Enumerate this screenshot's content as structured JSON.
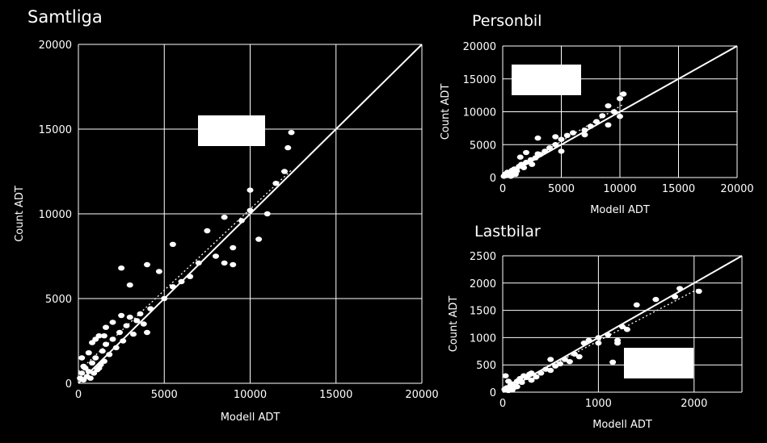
{
  "chart_data": [
    {
      "type": "scatter",
      "title": "Samtliga",
      "xlabel": "Modell ADT",
      "ylabel": "Count ADT",
      "xlim": [
        0,
        20000
      ],
      "ylim": [
        0,
        20000
      ],
      "xticks": [
        "0",
        "5000",
        "10000",
        "15000",
        "20000"
      ],
      "yticks": [
        "0",
        "5000",
        "10000",
        "15000",
        "20000"
      ],
      "grid": true,
      "reference_line": "y = x",
      "trendline": "dotted",
      "colors": {
        "background": "#000000",
        "marks": "#ffffff"
      },
      "points": [
        [
          200,
          600
        ],
        [
          400,
          900
        ],
        [
          600,
          700
        ],
        [
          800,
          1200
        ],
        [
          1000,
          1500
        ],
        [
          1200,
          900
        ],
        [
          1400,
          1900
        ],
        [
          1600,
          2300
        ],
        [
          1800,
          1700
        ],
        [
          2000,
          2600
        ],
        [
          2200,
          2100
        ],
        [
          2400,
          3000
        ],
        [
          2600,
          2500
        ],
        [
          2800,
          3400
        ],
        [
          3000,
          3900
        ],
        [
          3200,
          2900
        ],
        [
          3400,
          3700
        ],
        [
          3600,
          4100
        ],
        [
          3800,
          3500
        ],
        [
          4000,
          3000
        ],
        [
          1000,
          2600
        ],
        [
          1500,
          2800
        ],
        [
          2500,
          4000
        ],
        [
          3000,
          5800
        ],
        [
          2500,
          6800
        ],
        [
          4000,
          7000
        ],
        [
          4700,
          6600
        ],
        [
          5000,
          5000
        ],
        [
          5500,
          5700
        ],
        [
          6000,
          6000
        ],
        [
          5500,
          8200
        ],
        [
          7000,
          7100
        ],
        [
          8000,
          7500
        ],
        [
          8500,
          7100
        ],
        [
          9000,
          7000
        ],
        [
          8500,
          9800
        ],
        [
          9500,
          9600
        ],
        [
          10000,
          10200
        ],
        [
          10000,
          11400
        ],
        [
          10500,
          8500
        ],
        [
          11000,
          10000
        ],
        [
          11500,
          11800
        ],
        [
          12000,
          12500
        ],
        [
          12200,
          13900
        ],
        [
          12400,
          14800
        ],
        [
          9000,
          8000
        ],
        [
          7500,
          9000
        ],
        [
          100,
          300
        ],
        [
          300,
          200
        ],
        [
          500,
          400
        ],
        [
          700,
          300
        ],
        [
          900,
          600
        ],
        [
          1100,
          800
        ],
        [
          1300,
          1100
        ],
        [
          1500,
          1300
        ],
        [
          300,
          1000
        ],
        [
          200,
          1500
        ],
        [
          600,
          1800
        ],
        [
          800,
          2400
        ],
        [
          1200,
          2800
        ],
        [
          1600,
          3300
        ],
        [
          2000,
          3600
        ],
        [
          4200,
          4400
        ],
        [
          6500,
          6300
        ]
      ],
      "annotation_box": true
    },
    {
      "type": "scatter",
      "title": "Personbil",
      "xlabel": "Modell ADT",
      "ylabel": "Count ADT",
      "xlim": [
        0,
        20000
      ],
      "ylim": [
        0,
        20000
      ],
      "xticks": [
        "0",
        "5000",
        "10000",
        "15000",
        "20000"
      ],
      "yticks": [
        "0",
        "5000",
        "10000",
        "15000",
        "20000"
      ],
      "grid": true,
      "reference_line": "y = x",
      "trendline": "dotted",
      "colors": {
        "background": "#000000",
        "marks": "#ffffff"
      },
      "points": [
        [
          200,
          500
        ],
        [
          400,
          800
        ],
        [
          600,
          600
        ],
        [
          800,
          1100
        ],
        [
          1000,
          1300
        ],
        [
          1200,
          1000
        ],
        [
          1400,
          1700
        ],
        [
          1600,
          2000
        ],
        [
          1800,
          1500
        ],
        [
          2000,
          2300
        ],
        [
          2400,
          2700
        ],
        [
          2800,
          3000
        ],
        [
          3200,
          3500
        ],
        [
          3600,
          4000
        ],
        [
          4000,
          4500
        ],
        [
          4500,
          5000
        ],
        [
          3000,
          6000
        ],
        [
          4500,
          6200
        ],
        [
          5000,
          5800
        ],
        [
          5500,
          6400
        ],
        [
          6000,
          6800
        ],
        [
          7000,
          6500
        ],
        [
          7500,
          7800
        ],
        [
          8000,
          8500
        ],
        [
          8500,
          9400
        ],
        [
          9000,
          8000
        ],
        [
          9500,
          10000
        ],
        [
          10000,
          9300
        ],
        [
          10300,
          12700
        ],
        [
          10000,
          12000
        ],
        [
          9000,
          10900
        ],
        [
          7000,
          7200
        ],
        [
          5000,
          4000
        ],
        [
          3000,
          3600
        ],
        [
          2500,
          2000
        ],
        [
          1500,
          3100
        ],
        [
          2000,
          3800
        ],
        [
          100,
          200
        ],
        [
          300,
          300
        ],
        [
          500,
          400
        ],
        [
          700,
          200
        ],
        [
          900,
          700
        ],
        [
          1100,
          500
        ]
      ],
      "annotation_box": true
    },
    {
      "type": "scatter",
      "title": "Lastbilar",
      "xlabel": "Modell ADT",
      "ylabel": "Count ADT",
      "xlim": [
        0,
        2500
      ],
      "ylim": [
        0,
        2500
      ],
      "xticks": [
        "0",
        "1000",
        "2000"
      ],
      "yticks": [
        "0",
        "500",
        "1000",
        "1500",
        "2000",
        "2500"
      ],
      "grid": true,
      "reference_line": "y = x",
      "trendline": "dotted",
      "colors": {
        "background": "#000000",
        "marks": "#ffffff"
      },
      "points": [
        [
          20,
          50
        ],
        [
          40,
          80
        ],
        [
          60,
          30
        ],
        [
          80,
          120
        ],
        [
          100,
          150
        ],
        [
          120,
          90
        ],
        [
          150,
          200
        ],
        [
          180,
          250
        ],
        [
          200,
          180
        ],
        [
          220,
          300
        ],
        [
          250,
          270
        ],
        [
          280,
          330
        ],
        [
          300,
          220
        ],
        [
          350,
          280
        ],
        [
          400,
          350
        ],
        [
          450,
          420
        ],
        [
          500,
          400
        ],
        [
          550,
          480
        ],
        [
          600,
          520
        ],
        [
          650,
          600
        ],
        [
          700,
          560
        ],
        [
          750,
          700
        ],
        [
          800,
          650
        ],
        [
          850,
          900
        ],
        [
          900,
          950
        ],
        [
          1000,
          900
        ],
        [
          1100,
          1050
        ],
        [
          1200,
          950
        ],
        [
          1250,
          1200
        ],
        [
          1300,
          1150
        ],
        [
          1400,
          1600
        ],
        [
          1600,
          1700
        ],
        [
          1800,
          1750
        ],
        [
          1850,
          1900
        ],
        [
          2050,
          1850
        ],
        [
          1150,
          550
        ],
        [
          1200,
          900
        ],
        [
          1000,
          1000
        ],
        [
          500,
          600
        ],
        [
          300,
          350
        ],
        [
          100,
          40
        ],
        [
          60,
          200
        ],
        [
          30,
          300
        ],
        [
          150,
          100
        ]
      ],
      "annotation_box": true
    }
  ]
}
